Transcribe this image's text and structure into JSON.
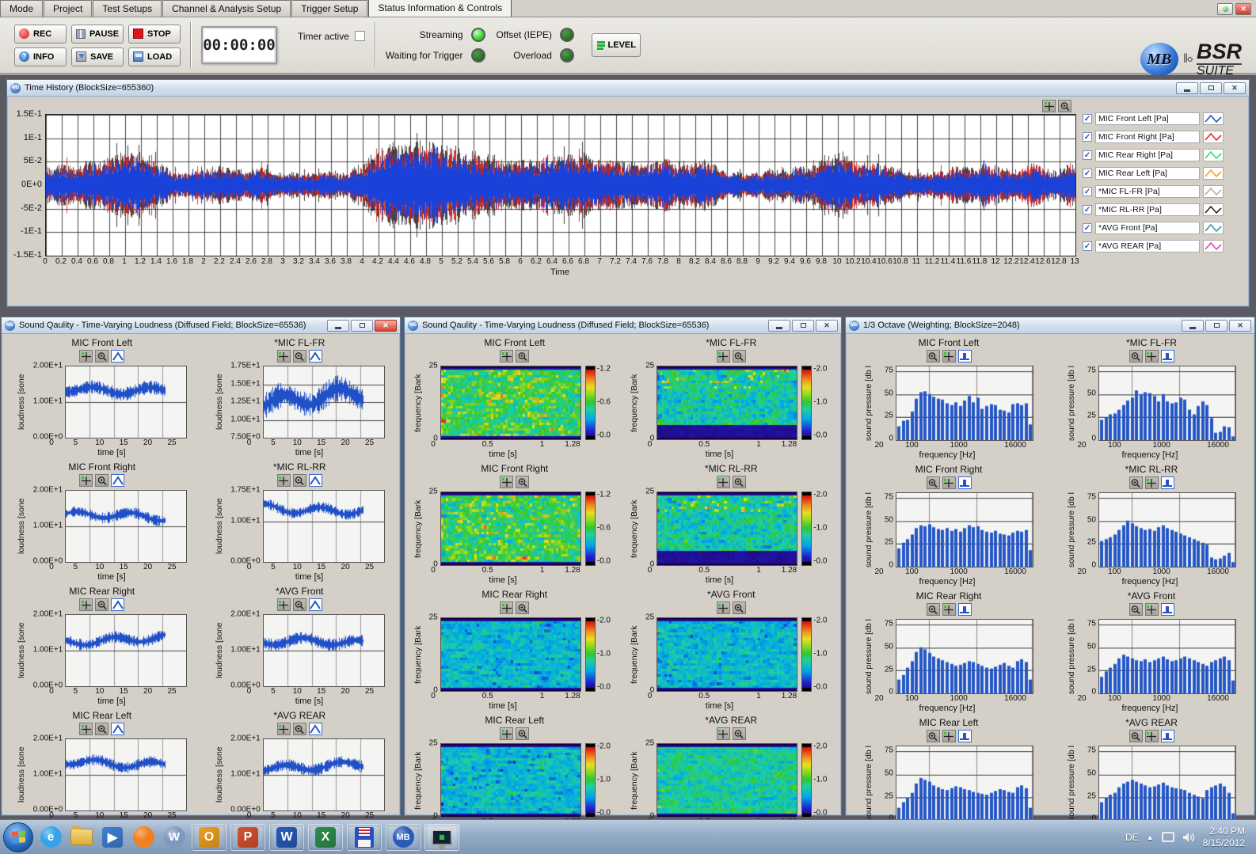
{
  "tabs": [
    "Mode",
    "Project",
    "Test Setups",
    "Channel & Analysis Setup",
    "Trigger Setup",
    "Status Information & Controls"
  ],
  "active_tab_index": 5,
  "toolbar": {
    "buttons": {
      "rec": "REC",
      "pause": "PAUSE",
      "stop": "STOP",
      "info": "INFO",
      "save": "SAVE",
      "load": "LOAD"
    },
    "timer_value": "00:00:00",
    "timer_active_label": "Timer active",
    "leds": [
      {
        "label": "Streaming",
        "state": "on"
      },
      {
        "label": "Offset (IEPE)",
        "state": "off"
      },
      {
        "label": "Waiting for Trigger",
        "state": "off"
      },
      {
        "label": "Overload",
        "state": "off"
      }
    ],
    "level_label": "LEVEL",
    "logo": {
      "badge": "MB",
      "line1": "BSR",
      "line2": "SUITE"
    }
  },
  "time_history": {
    "title": "Time History (BlockSize=655360)",
    "x_label": "Time",
    "y_ticks": [
      {
        "t": "1.5E-1",
        "v": 0.15
      },
      {
        "t": "1E-1",
        "v": 0.1
      },
      {
        "t": "5E-2",
        "v": 0.05
      },
      {
        "t": "0E+0",
        "v": 0
      },
      {
        "t": "-5E-2",
        "v": -0.05
      },
      {
        "t": "-1E-1",
        "v": -0.1
      },
      {
        "t": "-1.5E-1",
        "v": -0.15
      }
    ],
    "x_ticks": [
      "0",
      "0.2",
      "0.4",
      "0.6",
      "0.8",
      "1",
      "1.2",
      "1.4",
      "1.6",
      "1.8",
      "2",
      "2.2",
      "2.4",
      "2.6",
      "2.8",
      "3",
      "3.2",
      "3.4",
      "3.6",
      "3.8",
      "4",
      "4.2",
      "4.4",
      "4.6",
      "4.8",
      "5",
      "5.2",
      "5.4",
      "5.6",
      "5.8",
      "6",
      "6.2",
      "6.4",
      "6.6",
      "6.8",
      "7",
      "7.2",
      "7.4",
      "7.6",
      "7.8",
      "8",
      "8.2",
      "8.4",
      "8.6",
      "8.8",
      "9",
      "9.2",
      "9.4",
      "9.6",
      "9.8",
      "10",
      "10.2",
      "10.4",
      "10.6",
      "10.8",
      "11",
      "11.2",
      "11.4",
      "11.6",
      "11.8",
      "12",
      "12.2",
      "12.4",
      "12.6",
      "12.8",
      "13"
    ],
    "legend": [
      {
        "label": "MIC Front Left [Pa]",
        "color": "#2a52d8"
      },
      {
        "label": "MIC Front Right [Pa]",
        "color": "#e02828"
      },
      {
        "label": "MIC Rear Right [Pa]",
        "color": "#35d889"
      },
      {
        "label": "MIC Rear Left [Pa]",
        "color": "#f0a02a"
      },
      {
        "label": "*MIC FL-FR [Pa]",
        "color": "#b0b0b0"
      },
      {
        "label": "*MIC RL-RR [Pa]",
        "color": "#282828"
      },
      {
        "label": "*AVG Front [Pa]",
        "color": "#2e9aa0"
      },
      {
        "label": "*AVG REAR [Pa]",
        "color": "#e048b0"
      }
    ]
  },
  "loudness_window": {
    "title": "Sound Qaulity - Time-Varying Loudness (Diffused Field; BlockSize=65536)",
    "ylabel": "loudness [sone",
    "xlabel": "time [s]",
    "x_ticks": [
      {
        "t": "0",
        "v": 0
      },
      {
        "t": "5",
        "v": 5
      },
      {
        "t": "10",
        "v": 10
      },
      {
        "t": "15",
        "v": 15
      },
      {
        "t": "20",
        "v": 20
      },
      {
        "t": "25",
        "v": 25
      }
    ],
    "x_max": 25,
    "plots": [
      {
        "title": "MIC Front Left",
        "y_ticks": [
          {
            "t": "2.00E+1",
            "v": 20
          },
          {
            "t": "1.00E+1",
            "v": 10
          },
          {
            "t": "0.00E+0",
            "v": 0
          }
        ],
        "ymin": 0,
        "ymax": 20
      },
      {
        "title": "*MIC FL-FR",
        "y_ticks": [
          {
            "t": "1.75E+1",
            "v": 17.5
          },
          {
            "t": "1.50E+1",
            "v": 15
          },
          {
            "t": "1.25E+1",
            "v": 12.5
          },
          {
            "t": "1.00E+1",
            "v": 10
          },
          {
            "t": "7.50E+0",
            "v": 7.5
          }
        ],
        "ymin": 7.5,
        "ymax": 17.5
      },
      {
        "title": "MIC Front Right",
        "y_ticks": [
          {
            "t": "2.00E+1",
            "v": 20
          },
          {
            "t": "1.00E+1",
            "v": 10
          },
          {
            "t": "0.00E+0",
            "v": 0
          }
        ],
        "ymin": 0,
        "ymax": 20
      },
      {
        "title": "*MIC RL-RR",
        "y_ticks": [
          {
            "t": "1.75E+1",
            "v": 17.5
          },
          {
            "t": "1.00E+1",
            "v": 10
          },
          {
            "t": "0.00E+0",
            "v": 0
          }
        ],
        "ymin": 0,
        "ymax": 17.5
      },
      {
        "title": "MIC Rear Right",
        "y_ticks": [
          {
            "t": "2.00E+1",
            "v": 20
          },
          {
            "t": "1.00E+1",
            "v": 10
          },
          {
            "t": "0.00E+0",
            "v": 0
          }
        ],
        "ymin": 0,
        "ymax": 20
      },
      {
        "title": "*AVG Front",
        "y_ticks": [
          {
            "t": "2.00E+1",
            "v": 20
          },
          {
            "t": "1.00E+1",
            "v": 10
          },
          {
            "t": "0.00E+0",
            "v": 0
          }
        ],
        "ymin": 0,
        "ymax": 20
      },
      {
        "title": "MIC Rear Left",
        "y_ticks": [
          {
            "t": "2.00E+1",
            "v": 20
          },
          {
            "t": "1.00E+1",
            "v": 10
          },
          {
            "t": "0.00E+0",
            "v": 0
          }
        ],
        "ymin": 0,
        "ymax": 20
      },
      {
        "title": "*AVG REAR",
        "y_ticks": [
          {
            "t": "2.00E+1",
            "v": 20
          },
          {
            "t": "1.00E+1",
            "v": 10
          },
          {
            "t": "0.00E+0",
            "v": 0
          }
        ],
        "ymin": 0,
        "ymax": 20
      }
    ]
  },
  "spectrogram_window": {
    "title": "Sound Qaulity - Time-Varying Loudness (Diffused Field; BlockSize=65536)",
    "ylabel": "frequency [Bark",
    "xlabel": "time [s]",
    "y_ticks": [
      {
        "t": "25",
        "v": 1
      },
      {
        "t": "0",
        "v": 0
      }
    ],
    "x_ticks": [
      {
        "t": "0",
        "v": 0
      },
      {
        "t": "0.5",
        "v": 0.5
      },
      {
        "t": "1",
        "v": 1
      },
      {
        "t": "1.28",
        "v": 1.28
      }
    ],
    "x_max": 1.28,
    "plots": [
      {
        "title": "MIC Front Left",
        "colorbar": [
          "-1.2",
          "-0.6",
          "-0.0"
        ]
      },
      {
        "title": "*MIC FL-FR",
        "colorbar": [
          "-2.0",
          "-1.0",
          "-0.0"
        ]
      },
      {
        "title": "MIC Front Right",
        "colorbar": [
          "-1.2",
          "-0.6",
          "-0.0"
        ]
      },
      {
        "title": "*MIC RL-RR",
        "colorbar": [
          "-2.0",
          "-1.0",
          "-0.0"
        ]
      },
      {
        "title": "MIC Rear Right",
        "colorbar": [
          "-2.0",
          "-1.0",
          "-0.0"
        ]
      },
      {
        "title": "*AVG Front",
        "colorbar": [
          "-2.0",
          "-1.0",
          "-0.0"
        ]
      },
      {
        "title": "MIC Rear Left",
        "colorbar": [
          "-2.0",
          "-1.0",
          "-0.0"
        ]
      },
      {
        "title": "*AVG REAR",
        "colorbar": [
          "-2.0",
          "-1.0",
          "-0.0"
        ]
      }
    ]
  },
  "octave_window": {
    "title": "1/3 Octave (Weighting; BlockSize=2048)",
    "ylabel": "sound pressure [db l",
    "xlabel": "frequency [Hz]",
    "y_ticks": [
      {
        "t": "75",
        "v": 75
      },
      {
        "t": "50",
        "v": 50
      },
      {
        "t": "25",
        "v": 25
      },
      {
        "t": "0",
        "v": 0
      }
    ],
    "ymax": 80,
    "x_ticks": [
      {
        "t": "20",
        "v": 20
      },
      {
        "t": "100",
        "v": 100
      },
      {
        "t": "1000",
        "v": 1000
      },
      {
        "t": "16000",
        "v": 16000
      }
    ],
    "plot_titles": [
      "MIC Front Left",
      "*MIC FL-FR",
      "MIC Front Right",
      "*MIC RL-RR",
      "MIC Rear Right",
      "*AVG Front",
      "MIC Rear Left",
      "*AVG REAR"
    ]
  },
  "chart_data": [
    {
      "type": "line",
      "title": "Time History",
      "xlabel": "Time",
      "x_range": [
        0,
        13
      ],
      "y_range": [
        -0.15,
        0.15
      ],
      "grid": true,
      "legend_position": "right",
      "series_styles": [
        {
          "name": "blue-main",
          "amp": 0.05
        },
        {
          "name": "red-spikes",
          "amp": 0.09
        },
        {
          "name": "dark-spikes",
          "amp": 0.1
        }
      ]
    },
    {
      "type": "line",
      "group": "loudness",
      "x_range": [
        0,
        25
      ],
      "data_end_x": 20.5,
      "plots": [
        {
          "title": "MIC Front Left",
          "mean": 13.8,
          "spread": 2.2,
          "seed": 11
        },
        {
          "title": "*MIC FL-FR",
          "mean": 13.0,
          "spread": 2.1,
          "seed": 12
        },
        {
          "title": "MIC Front Right",
          "mean": 12.6,
          "spread": 1.8,
          "seed": 13
        },
        {
          "title": "*MIC RL-RR",
          "mean": 13.2,
          "spread": 1.5,
          "seed": 14
        },
        {
          "title": "MIC Rear Right",
          "mean": 13.0,
          "spread": 1.8,
          "seed": 15
        },
        {
          "title": "*AVG Front",
          "mean": 12.0,
          "spread": 2.0,
          "seed": 16
        },
        {
          "title": "MIC Rear Left",
          "mean": 13.5,
          "spread": 1.8,
          "seed": 17
        },
        {
          "title": "*AVG REAR",
          "mean": 12.5,
          "spread": 1.9,
          "seed": 18
        }
      ]
    },
    {
      "type": "heatmap",
      "group": "spectrogram",
      "x_range": [
        0,
        1.28
      ],
      "y_range": [
        0,
        25
      ],
      "plots": [
        {
          "title": "MIC Front Left",
          "style": "hot",
          "seed": 21
        },
        {
          "title": "*MIC FL-FR",
          "style": "hot-purpletop",
          "seed": 22
        },
        {
          "title": "MIC Front Right",
          "style": "hot",
          "seed": 23
        },
        {
          "title": "*MIC RL-RR",
          "style": "hot-purpletop",
          "seed": 24
        },
        {
          "title": "MIC Rear Right",
          "style": "cool",
          "seed": 25
        },
        {
          "title": "*AVG Front",
          "style": "cool",
          "seed": 26
        },
        {
          "title": "MIC Rear Left",
          "style": "cool",
          "seed": 27
        },
        {
          "title": "*AVG REAR",
          "style": "cool-green",
          "seed": 28
        }
      ]
    },
    {
      "type": "bar",
      "group": "octave",
      "ylim": [
        0,
        80
      ],
      "x_scale": "log",
      "x_range": [
        20,
        16000
      ],
      "plots": [
        {
          "title": "MIC Front Left",
          "values": [
            15,
            21,
            22,
            31,
            45,
            52,
            53,
            50,
            47,
            45,
            44,
            40,
            38,
            41,
            37,
            43,
            48,
            41,
            46,
            34,
            37,
            39,
            38,
            33,
            32,
            30,
            39,
            40,
            38,
            40,
            17
          ]
        },
        {
          "title": "*MIC FL-FR",
          "values": [
            22,
            25,
            28,
            29,
            33,
            38,
            43,
            46,
            54,
            50,
            52,
            51,
            48,
            42,
            50,
            42,
            40,
            41,
            46,
            44,
            33,
            28,
            37,
            42,
            38,
            24,
            8,
            9,
            15,
            14,
            4
          ]
        },
        {
          "title": "MIC Front Right",
          "values": [
            20,
            26,
            30,
            35,
            42,
            45,
            44,
            46,
            43,
            41,
            40,
            42,
            39,
            41,
            38,
            42,
            45,
            43,
            44,
            40,
            38,
            37,
            39,
            36,
            35,
            34,
            37,
            39,
            38,
            40,
            18
          ]
        },
        {
          "title": "*MIC RL-RR",
          "values": [
            28,
            30,
            32,
            35,
            40,
            45,
            50,
            47,
            44,
            42,
            40,
            41,
            39,
            43,
            45,
            42,
            40,
            38,
            36,
            34,
            32,
            30,
            28,
            26,
            24,
            10,
            8,
            9,
            12,
            15,
            5
          ]
        },
        {
          "title": "MIC Rear Right",
          "values": [
            15,
            20,
            28,
            35,
            45,
            50,
            48,
            44,
            40,
            38,
            36,
            34,
            32,
            30,
            31,
            33,
            35,
            34,
            32,
            30,
            28,
            27,
            29,
            31,
            33,
            30,
            28,
            35,
            37,
            34,
            15
          ]
        },
        {
          "title": "*AVG Front",
          "values": [
            18,
            24,
            28,
            32,
            38,
            42,
            40,
            38,
            36,
            35,
            37,
            34,
            36,
            38,
            40,
            37,
            35,
            36,
            38,
            40,
            38,
            36,
            34,
            32,
            30,
            34,
            36,
            38,
            40,
            36,
            14
          ]
        },
        {
          "title": "MIC Rear Left",
          "values": [
            14,
            20,
            25,
            30,
            40,
            46,
            44,
            42,
            38,
            36,
            34,
            33,
            35,
            37,
            36,
            34,
            33,
            31,
            30,
            29,
            28,
            30,
            32,
            34,
            33,
            31,
            30,
            36,
            38,
            35,
            14
          ]
        },
        {
          "title": "*AVG REAR",
          "values": [
            20,
            25,
            28,
            30,
            36,
            40,
            42,
            44,
            42,
            40,
            38,
            36,
            37,
            39,
            41,
            38,
            36,
            35,
            34,
            33,
            30,
            28,
            26,
            24,
            33,
            36,
            38,
            40,
            37,
            30,
            8
          ]
        }
      ]
    }
  ],
  "taskbar": {
    "icons": [
      {
        "name": "internet-explorer-icon",
        "shape": "circle",
        "color": "#35a3e8",
        "glyph": "e",
        "framed": false
      },
      {
        "name": "windows-explorer-icon",
        "shape": "folder",
        "framed": false
      },
      {
        "name": "media-player-icon",
        "shape": "badge",
        "color": "#3f7fd4",
        "glyph": "▶",
        "framed": false
      },
      {
        "name": "firefox-icon",
        "shape": "circle",
        "color": "#f08020",
        "glyph": "",
        "framed": false
      },
      {
        "name": "wordpress-icon",
        "shape": "circle",
        "color": "#7d99c0",
        "glyph": "W",
        "framed": false
      },
      {
        "name": "outlook-icon",
        "shape": "badge",
        "color": "#f0a020",
        "glyph": "O",
        "framed": true
      },
      {
        "name": "powerpoint-icon",
        "shape": "badge",
        "color": "#d45230",
        "glyph": "P",
        "framed": true
      },
      {
        "name": "word-icon",
        "shape": "badge",
        "color": "#2a5bb8",
        "glyph": "W",
        "framed": true
      },
      {
        "name": "excel-icon",
        "shape": "badge",
        "color": "#2e8f4e",
        "glyph": "X",
        "framed": true
      },
      {
        "name": "floppy-save-icon",
        "shape": "floppy",
        "framed": true
      },
      {
        "name": "bsr-suite-icon",
        "shape": "circle",
        "color": "#2a5bb8",
        "glyph": "MB",
        "framed": true
      },
      {
        "name": "active-app-icon",
        "shape": "monitor",
        "framed": true,
        "active": true
      }
    ],
    "tray": {
      "language": "DE",
      "time": "2:40 PM",
      "date": "8/15/2012"
    }
  }
}
